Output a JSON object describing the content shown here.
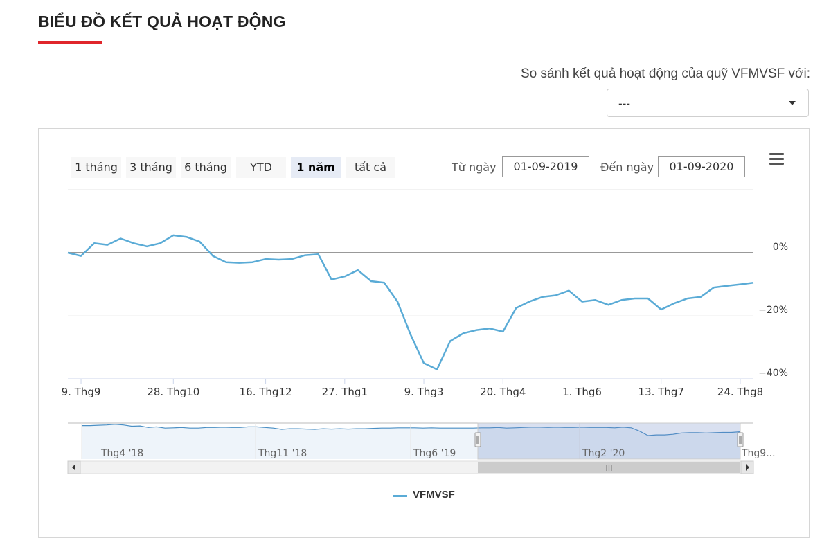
{
  "header": {
    "title": "BIỂU ĐỒ KẾT QUẢ HOẠT ĐỘNG",
    "accent_color": "#e0262b"
  },
  "compare": {
    "label": "So sánh kết quả hoạt động của quỹ VFMVSF với:",
    "selected": "---"
  },
  "range_selector": {
    "buttons": [
      "1 tháng",
      "3 tháng",
      "6 tháng",
      "YTD",
      "1 năm",
      "tất cả"
    ],
    "active": "1 năm",
    "from_label": "Từ ngày",
    "from_value": "01-09-2019",
    "to_label": "Đến ngày",
    "to_value": "01-09-2020"
  },
  "chart_data": {
    "type": "line",
    "series": [
      {
        "name": "VFMVSF",
        "color": "#5aabd6",
        "x": [
          "2019-09-02",
          "2019-09-09",
          "2019-09-16",
          "2019-09-23",
          "2019-09-30",
          "2019-10-07",
          "2019-10-14",
          "2019-10-21",
          "2019-10-28",
          "2019-11-04",
          "2019-11-11",
          "2019-11-18",
          "2019-11-25",
          "2019-12-02",
          "2019-12-09",
          "2019-12-16",
          "2019-12-23",
          "2019-12-30",
          "2020-01-06",
          "2020-01-13",
          "2020-01-20",
          "2020-01-27",
          "2020-02-03",
          "2020-02-10",
          "2020-02-17",
          "2020-02-24",
          "2020-03-02",
          "2020-03-09",
          "2020-03-16",
          "2020-03-23",
          "2020-03-30",
          "2020-04-06",
          "2020-04-13",
          "2020-04-20",
          "2020-04-27",
          "2020-05-04",
          "2020-05-11",
          "2020-05-18",
          "2020-05-25",
          "2020-06-01",
          "2020-06-08",
          "2020-06-15",
          "2020-06-22",
          "2020-06-29",
          "2020-07-06",
          "2020-07-13",
          "2020-07-20",
          "2020-07-27",
          "2020-08-03",
          "2020-08-10",
          "2020-08-17",
          "2020-08-24",
          "2020-08-31"
        ],
        "values": [
          0,
          -1,
          3,
          2.5,
          4.5,
          3,
          2,
          3,
          5.5,
          5,
          3.5,
          -1,
          -3,
          -3.2,
          -3,
          -2,
          -2.2,
          -2,
          -0.8,
          -0.5,
          -8.5,
          -7.5,
          -5.5,
          -9,
          -9.5,
          -15.5,
          -26,
          -35,
          -37,
          -28,
          -25.5,
          -24.5,
          -24,
          -25,
          -17.5,
          -15.5,
          -14,
          -13.5,
          -12,
          -15.5,
          -15,
          -16.5,
          -15,
          -14.5,
          -14.5,
          -18,
          -16,
          -14.5,
          -14,
          -11,
          -10.5,
          -10,
          -9.5
        ]
      }
    ],
    "y_unit": "%",
    "y_ticks": [
      0,
      -20,
      -40
    ],
    "y_tick_labels": [
      "0%",
      "−20%",
      "−40%"
    ],
    "ylim": [
      -40,
      20
    ],
    "x_tick_dates": [
      "2019-09-09",
      "2019-10-28",
      "2019-12-16",
      "2020-01-27",
      "2020-03-09",
      "2020-04-20",
      "2020-06-01",
      "2020-07-13",
      "2020-08-24"
    ],
    "x_tick_labels": [
      "9. Thg9",
      "28. Thg10",
      "16. Thg12",
      "27. Thg1",
      "9. Thg3",
      "20. Thg4",
      "1. Thg6",
      "13. Thg7",
      "24. Thg8"
    ],
    "zero_line": true,
    "grid": true,
    "legend": "bottom-center"
  },
  "navigator": {
    "labels": [
      "Thg4 '18",
      "Thg11 '18",
      "Thg6 '19",
      "Thg2 '20",
      "Thg9..."
    ],
    "series_values": [
      6,
      6,
      6.5,
      7,
      8,
      7,
      5,
      5.5,
      3,
      4,
      2,
      2.5,
      3,
      2,
      2,
      3,
      3,
      3.5,
      3,
      3,
      4,
      4,
      3,
      2,
      0,
      1,
      1,
      0.5,
      0,
      1,
      0.5,
      1,
      0.5,
      1,
      1,
      1.5,
      2,
      2,
      2.5,
      2.5,
      2.5,
      2,
      2.5,
      2,
      2,
      2,
      2,
      2,
      2.5,
      2.5,
      3,
      2,
      2.5,
      3,
      3.5,
      3.5,
      3,
      3.5,
      3,
      3,
      3.5,
      3,
      3,
      3,
      2.5,
      3.5,
      2.5,
      -3,
      -10,
      -9,
      -9,
      -8,
      -6,
      -5.5,
      -5.5,
      -6,
      -5.5,
      -5,
      -5,
      -4
    ],
    "selection_range": [
      "2019-09-01",
      "2020-09-01"
    ],
    "scroll_thumb_label": "III"
  },
  "legend": {
    "items": [
      {
        "name": "VFMVSF",
        "color": "#5aabd6"
      }
    ]
  }
}
